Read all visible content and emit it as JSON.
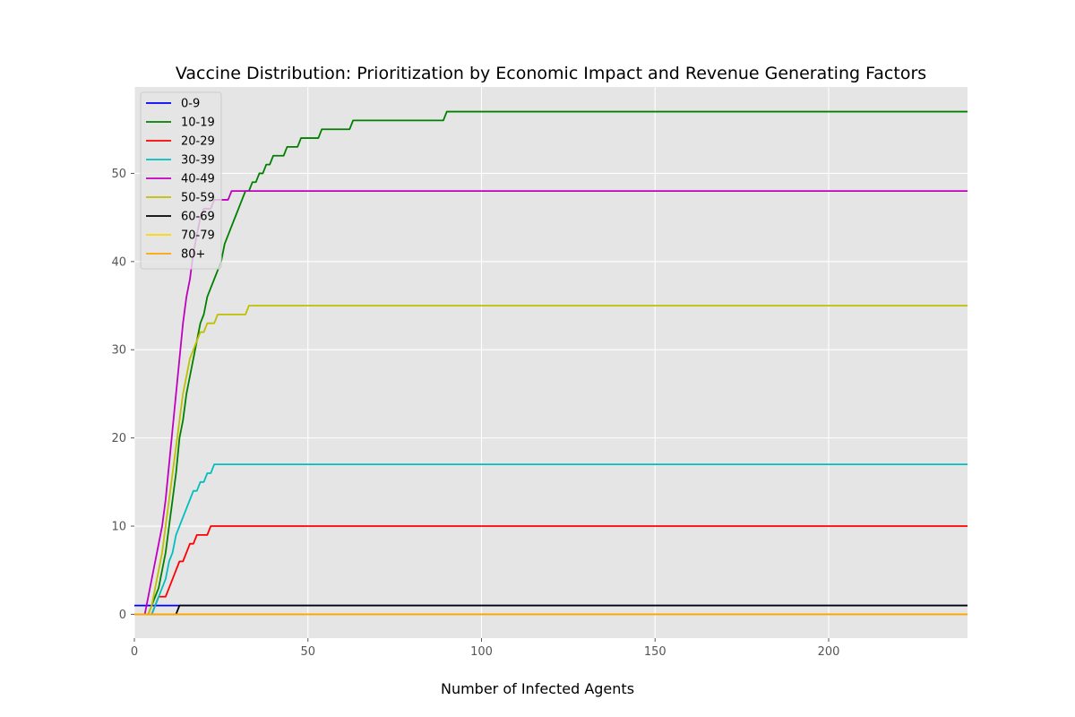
{
  "chart_data": {
    "type": "line",
    "title": "Vaccine Distribution: Prioritization by Economic Impact and Revenue Generating Factors",
    "xlabel": "Number of Infected Agents",
    "ylabel": "",
    "xlim": [
      0,
      240
    ],
    "ylim": [
      -2.7,
      59.8
    ],
    "xticks": [
      0,
      50,
      100,
      150,
      200
    ],
    "yticks": [
      0,
      10,
      20,
      30,
      40,
      50
    ],
    "grid": true,
    "legend_position": "top-left",
    "background": "#e5e5e5",
    "series": [
      {
        "name": "0-9",
        "color": "#0000ff",
        "points": [
          [
            0,
            1
          ],
          [
            12,
            1
          ],
          [
            13,
            1
          ],
          [
            240,
            1
          ]
        ]
      },
      {
        "name": "10-19",
        "color": "#008000",
        "points": [
          [
            0,
            0
          ],
          [
            4,
            0
          ],
          [
            5,
            1
          ],
          [
            6,
            2
          ],
          [
            7,
            3
          ],
          [
            8,
            5
          ],
          [
            9,
            7
          ],
          [
            10,
            10
          ],
          [
            11,
            13
          ],
          [
            12,
            16
          ],
          [
            13,
            20
          ],
          [
            14,
            22
          ],
          [
            15,
            25
          ],
          [
            16,
            27
          ],
          [
            17,
            29
          ],
          [
            18,
            31
          ],
          [
            19,
            33
          ],
          [
            20,
            34
          ],
          [
            21,
            36
          ],
          [
            22,
            37
          ],
          [
            23,
            38
          ],
          [
            24,
            39
          ],
          [
            25,
            40
          ],
          [
            26,
            42
          ],
          [
            27,
            43
          ],
          [
            28,
            44
          ],
          [
            29,
            45
          ],
          [
            30,
            46
          ],
          [
            31,
            47
          ],
          [
            32,
            48
          ],
          [
            33,
            48
          ],
          [
            34,
            49
          ],
          [
            35,
            49
          ],
          [
            36,
            50
          ],
          [
            37,
            50
          ],
          [
            38,
            51
          ],
          [
            39,
            51
          ],
          [
            40,
            52
          ],
          [
            43,
            52
          ],
          [
            44,
            53
          ],
          [
            47,
            53
          ],
          [
            48,
            54
          ],
          [
            53,
            54
          ],
          [
            54,
            55
          ],
          [
            62,
            55
          ],
          [
            63,
            56
          ],
          [
            89,
            56
          ],
          [
            90,
            57
          ],
          [
            240,
            57
          ]
        ]
      },
      {
        "name": "20-29",
        "color": "#ff0000",
        "points": [
          [
            0,
            0
          ],
          [
            5,
            0
          ],
          [
            6,
            1
          ],
          [
            7,
            2
          ],
          [
            9,
            2
          ],
          [
            10,
            3
          ],
          [
            11,
            4
          ],
          [
            12,
            5
          ],
          [
            13,
            6
          ],
          [
            14,
            6
          ],
          [
            15,
            7
          ],
          [
            16,
            8
          ],
          [
            17,
            8
          ],
          [
            18,
            9
          ],
          [
            21,
            9
          ],
          [
            22,
            10
          ],
          [
            240,
            10
          ]
        ]
      },
      {
        "name": "30-39",
        "color": "#00bfbf",
        "points": [
          [
            0,
            0
          ],
          [
            5,
            0
          ],
          [
            6,
            1
          ],
          [
            7,
            2
          ],
          [
            8,
            3
          ],
          [
            9,
            4
          ],
          [
            10,
            6
          ],
          [
            11,
            7
          ],
          [
            12,
            9
          ],
          [
            13,
            10
          ],
          [
            14,
            11
          ],
          [
            15,
            12
          ],
          [
            16,
            13
          ],
          [
            17,
            14
          ],
          [
            18,
            14
          ],
          [
            19,
            15
          ],
          [
            20,
            15
          ],
          [
            21,
            16
          ],
          [
            22,
            16
          ],
          [
            23,
            17
          ],
          [
            240,
            17
          ]
        ]
      },
      {
        "name": "40-49",
        "color": "#bf00bf",
        "points": [
          [
            0,
            0
          ],
          [
            3,
            0
          ],
          [
            4,
            2
          ],
          [
            5,
            4
          ],
          [
            6,
            6
          ],
          [
            7,
            8
          ],
          [
            8,
            10
          ],
          [
            9,
            13
          ],
          [
            10,
            17
          ],
          [
            11,
            21
          ],
          [
            12,
            25
          ],
          [
            13,
            29
          ],
          [
            14,
            33
          ],
          [
            15,
            36
          ],
          [
            16,
            38
          ],
          [
            17,
            41
          ],
          [
            18,
            43
          ],
          [
            19,
            45
          ],
          [
            20,
            46
          ],
          [
            21,
            46
          ],
          [
            22,
            46
          ],
          [
            23,
            47
          ],
          [
            27,
            47
          ],
          [
            28,
            48
          ],
          [
            240,
            48
          ]
        ]
      },
      {
        "name": "50-59",
        "color": "#bfbf00",
        "points": [
          [
            0,
            0
          ],
          [
            4,
            0
          ],
          [
            5,
            1
          ],
          [
            6,
            3
          ],
          [
            7,
            5
          ],
          [
            8,
            7
          ],
          [
            9,
            10
          ],
          [
            10,
            13
          ],
          [
            11,
            16
          ],
          [
            12,
            19
          ],
          [
            13,
            22
          ],
          [
            14,
            25
          ],
          [
            15,
            27
          ],
          [
            16,
            29
          ],
          [
            17,
            30
          ],
          [
            18,
            31
          ],
          [
            19,
            32
          ],
          [
            20,
            32
          ],
          [
            21,
            33
          ],
          [
            23,
            33
          ],
          [
            24,
            34
          ],
          [
            32,
            34
          ],
          [
            33,
            35
          ],
          [
            240,
            35
          ]
        ]
      },
      {
        "name": "60-69",
        "color": "#000000",
        "points": [
          [
            0,
            0
          ],
          [
            12,
            0
          ],
          [
            13,
            1
          ],
          [
            240,
            1
          ]
        ]
      },
      {
        "name": "70-79",
        "color": "#ffd700",
        "points": [
          [
            0,
            0
          ],
          [
            240,
            0
          ]
        ]
      },
      {
        "name": "80+",
        "color": "#ffa500",
        "points": [
          [
            0,
            0
          ],
          [
            240,
            0
          ]
        ]
      }
    ]
  }
}
